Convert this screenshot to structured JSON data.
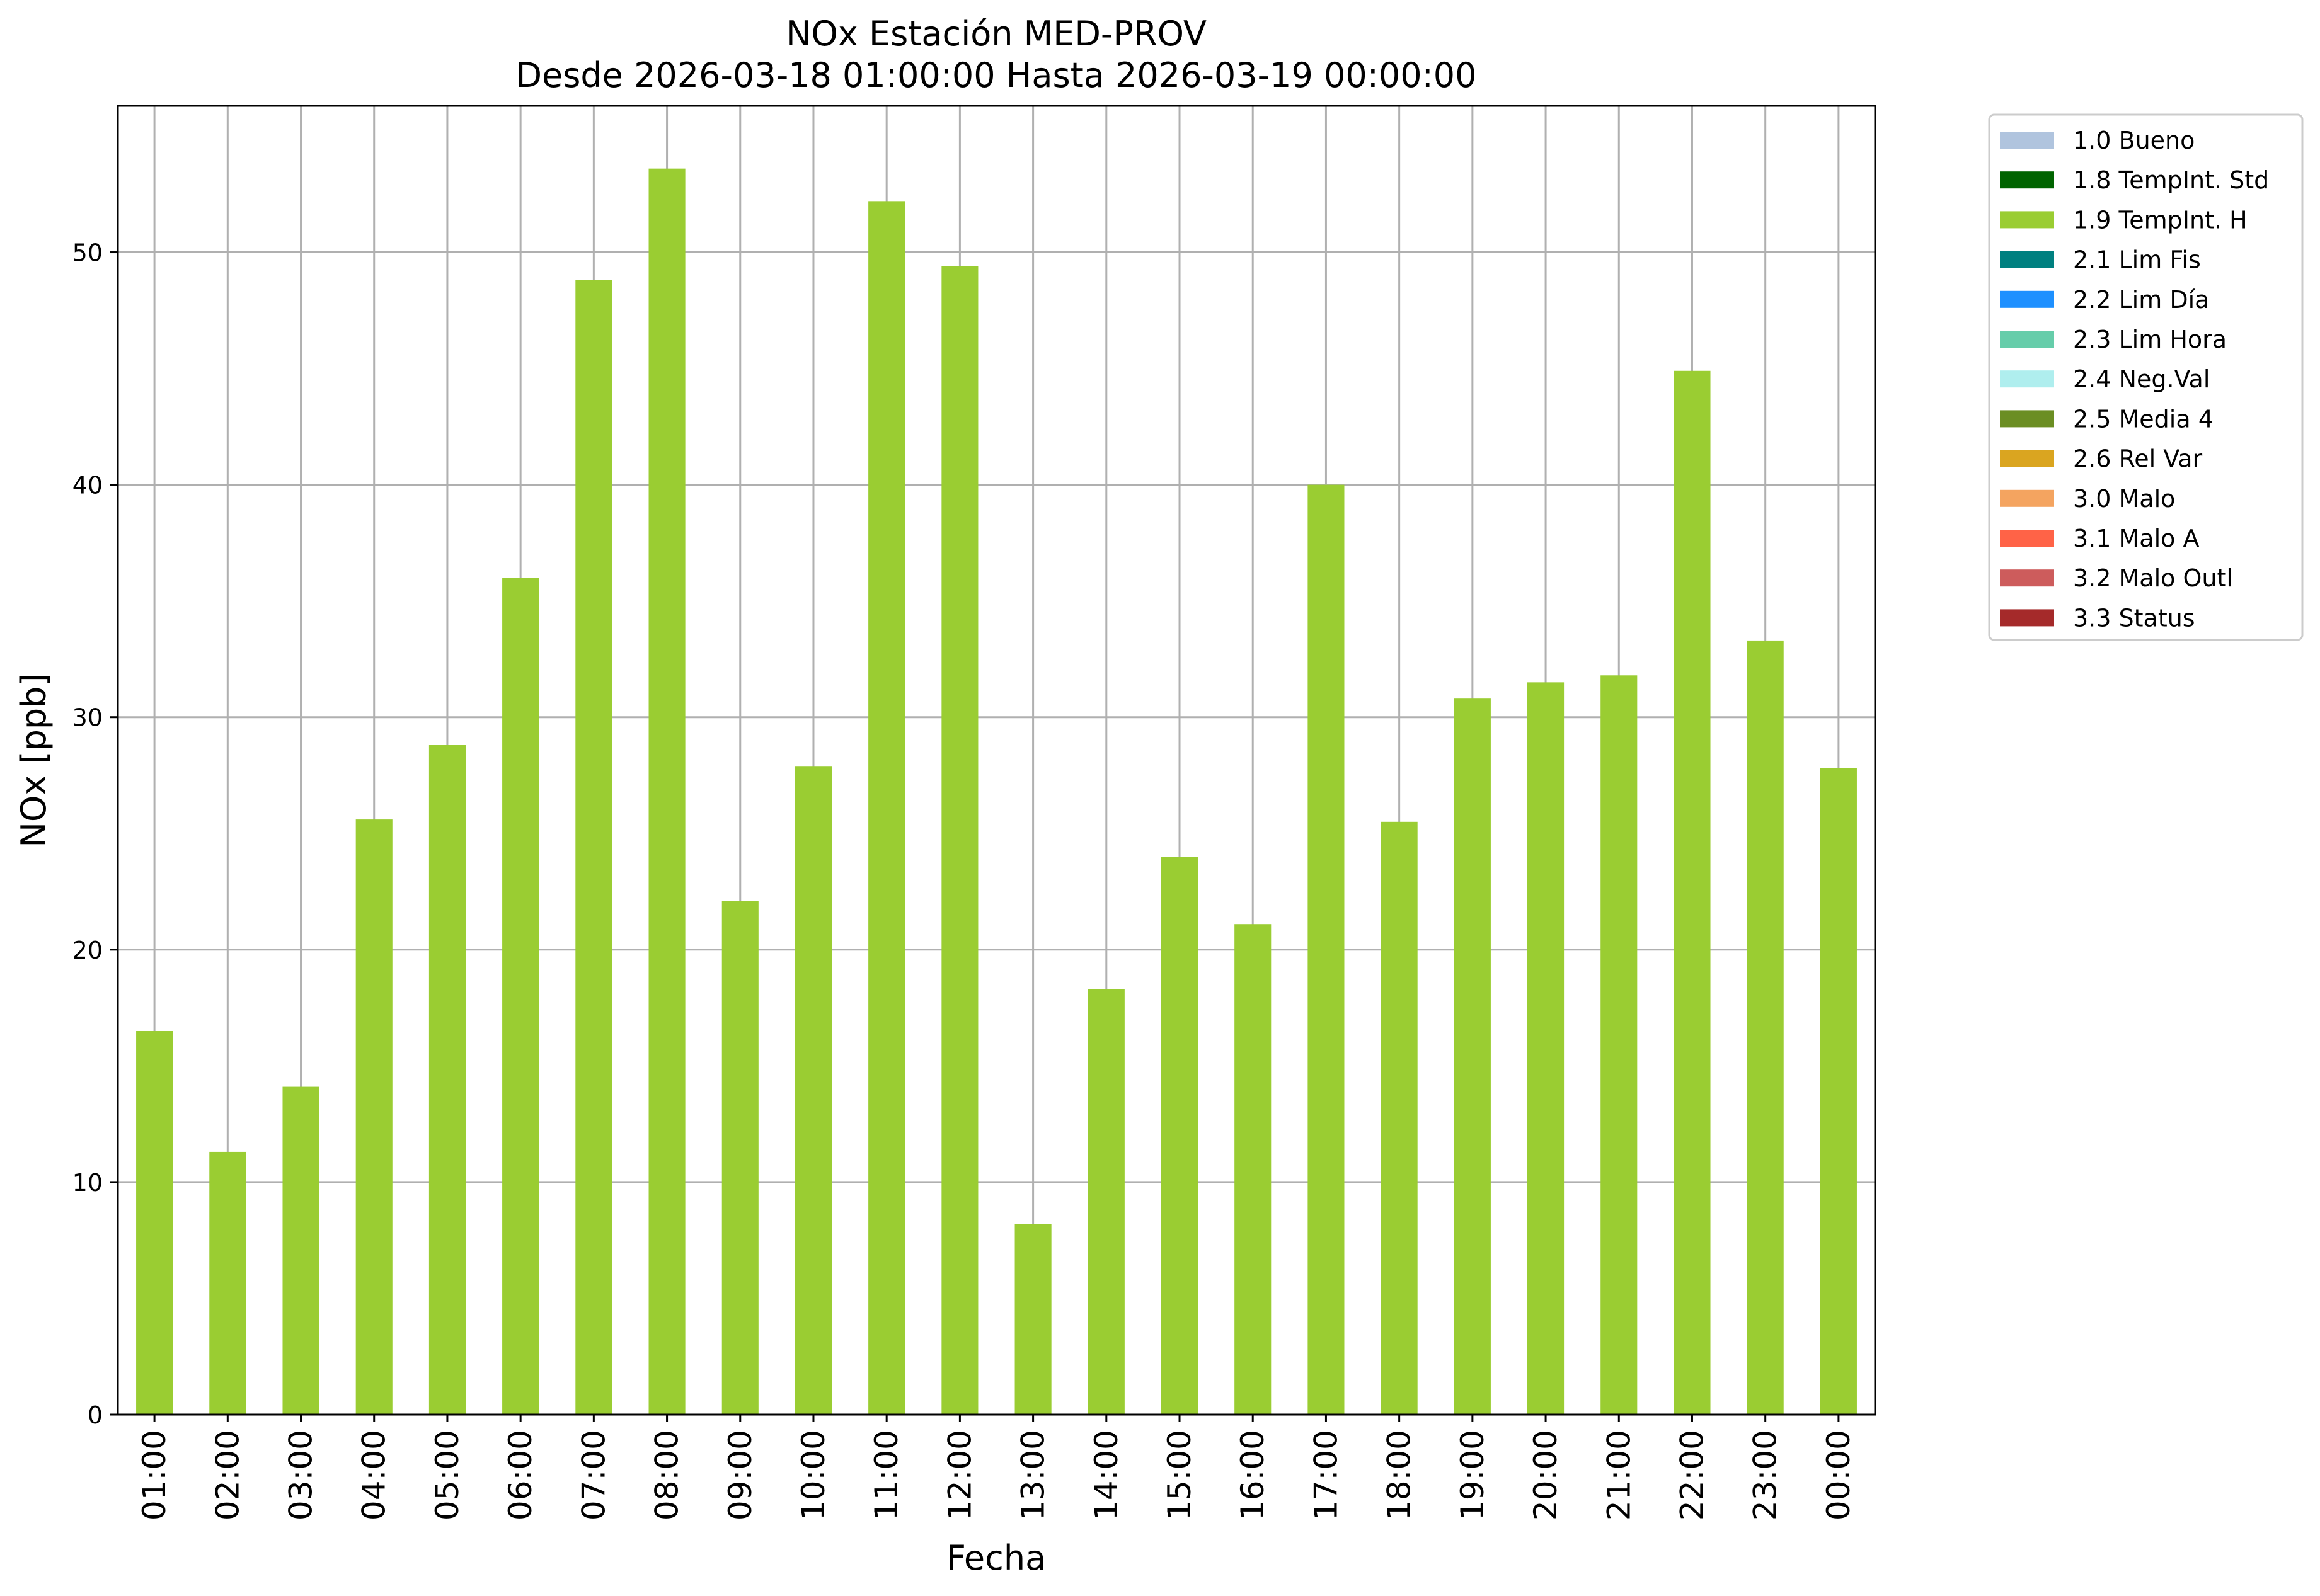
{
  "chart_data": {
    "type": "bar",
    "title": "NOx Estación MED-PROV",
    "subtitle": "Desde 2026-03-18 01:00:00 Hasta 2026-03-19 00:00:00",
    "xlabel": "Fecha",
    "ylabel": "NOx [ppb]",
    "ylim": [
      0,
      56.3
    ],
    "yticks": [
      0,
      10,
      20,
      30,
      40,
      50
    ],
    "grid": true,
    "legend_position": "outside-top-right",
    "categories": [
      "01:00",
      "02:00",
      "03:00",
      "04:00",
      "05:00",
      "06:00",
      "07:00",
      "08:00",
      "09:00",
      "10:00",
      "11:00",
      "12:00",
      "13:00",
      "14:00",
      "15:00",
      "16:00",
      "17:00",
      "18:00",
      "19:00",
      "20:00",
      "21:00",
      "22:00",
      "23:00",
      "00:00"
    ],
    "series": [
      {
        "name": "1.9 TempInt. H",
        "color": "#9acd32",
        "values": [
          16.5,
          11.3,
          14.1,
          25.6,
          28.8,
          36.0,
          48.8,
          53.6,
          22.1,
          27.9,
          52.2,
          49.4,
          8.2,
          18.3,
          24.0,
          21.1,
          40.0,
          25.5,
          30.8,
          31.5,
          31.8,
          44.9,
          33.3,
          27.8
        ]
      }
    ],
    "legend": [
      {
        "label": "1.0 Bueno",
        "color": "#b0c4de"
      },
      {
        "label": "1.8 TempInt. Std",
        "color": "#006400"
      },
      {
        "label": "1.9 TempInt. H",
        "color": "#9acd32"
      },
      {
        "label": "2.1 Lim Fis",
        "color": "#008080"
      },
      {
        "label": "2.2 Lim Día",
        "color": "#1e90ff"
      },
      {
        "label": "2.3 Lim Hora",
        "color": "#66cdaa"
      },
      {
        "label": "2.4 Neg.Val",
        "color": "#afeeee"
      },
      {
        "label": "2.5 Media 4",
        "color": "#6b8e23"
      },
      {
        "label": "2.6 Rel Var",
        "color": "#daa520"
      },
      {
        "label": "3.0 Malo",
        "color": "#f4a460"
      },
      {
        "label": "3.1 Malo A",
        "color": "#ff6347"
      },
      {
        "label": "3.2 Malo Outl",
        "color": "#cd5c5c"
      },
      {
        "label": "3.3 Status",
        "color": "#a52a2a"
      }
    ]
  }
}
